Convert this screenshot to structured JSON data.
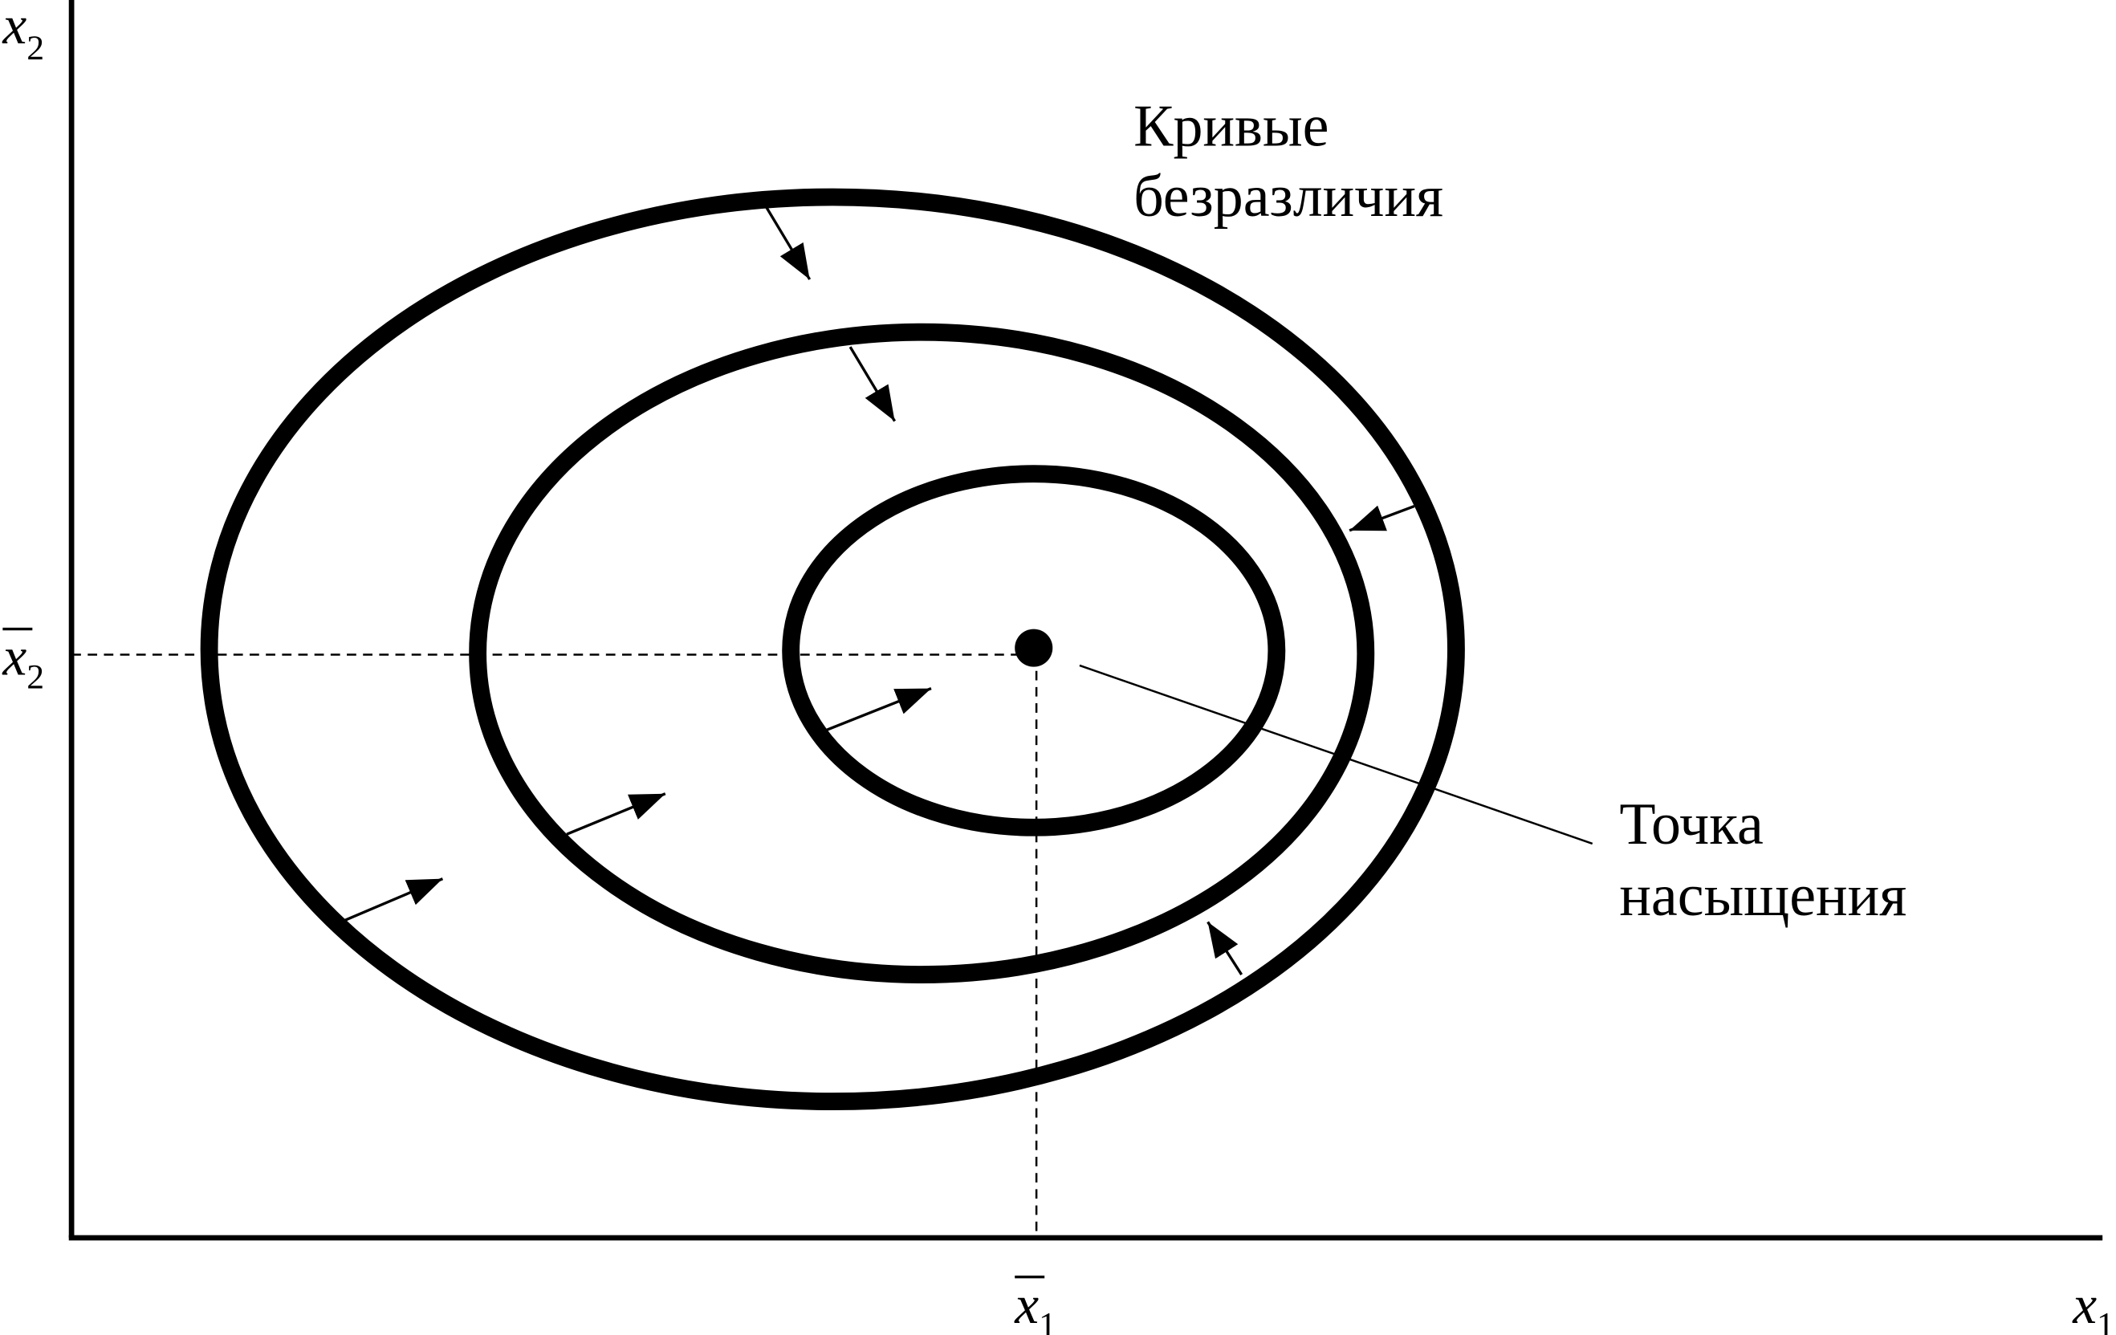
{
  "y_axis": {
    "label": "x",
    "subscript": "2"
  },
  "x_axis": {
    "label": "x",
    "subscript": "1"
  },
  "y_mark": {
    "label": "x",
    "subscript": "2"
  },
  "x_mark": {
    "label": "x",
    "subscript": "1"
  },
  "curves_label": {
    "line1": "Кривые",
    "line2": "безразличия"
  },
  "satiation_label": {
    "line1": "Точка",
    "line2": "насыщения"
  }
}
